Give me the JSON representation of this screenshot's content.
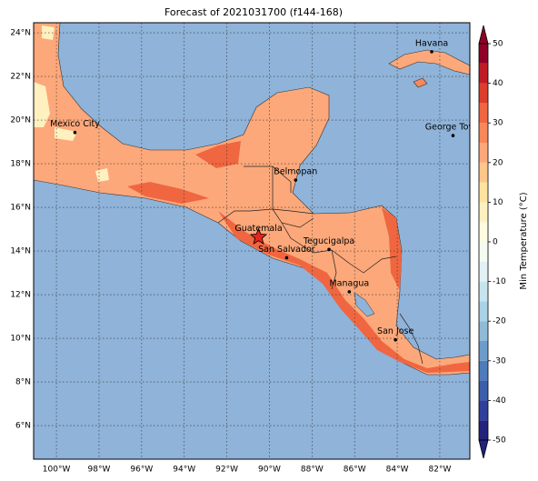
{
  "title": "Forecast of 2021031700 (f144-168)",
  "map": {
    "lonlim": [
      -101.07,
      -80.59
    ],
    "latlim": [
      4.46,
      24.46
    ],
    "xticks": [
      {
        "value": -100,
        "label": "100°W"
      },
      {
        "value": -98,
        "label": "98°W"
      },
      {
        "value": -96,
        "label": "96°W"
      },
      {
        "value": -94,
        "label": "94°W"
      },
      {
        "value": -92,
        "label": "92°W"
      },
      {
        "value": -90,
        "label": "90°W"
      },
      {
        "value": -88,
        "label": "88°W"
      },
      {
        "value": -86,
        "label": "86°W"
      },
      {
        "value": -84,
        "label": "84°W"
      },
      {
        "value": -82,
        "label": "82°W"
      }
    ],
    "yticks": [
      {
        "value": 6,
        "label": "6°N"
      },
      {
        "value": 8,
        "label": "8°N"
      },
      {
        "value": 10,
        "label": "10°N"
      },
      {
        "value": 12,
        "label": "12°N"
      },
      {
        "value": 14,
        "label": "14°N"
      },
      {
        "value": 16,
        "label": "16°N"
      },
      {
        "value": 18,
        "label": "18°N"
      },
      {
        "value": 20,
        "label": "20°N"
      },
      {
        "value": 22,
        "label": "22°N"
      },
      {
        "value": 24,
        "label": "24°N"
      }
    ],
    "grid": true,
    "cities": [
      {
        "name": "Mexico City",
        "lon": -99.13,
        "lat": 19.43,
        "marker": "dot"
      },
      {
        "name": "Havana",
        "lon": -82.38,
        "lat": 23.13,
        "marker": "dot"
      },
      {
        "name": "George Town",
        "lon": -81.38,
        "lat": 19.29,
        "marker": "dot"
      },
      {
        "name": "Belmopan",
        "lon": -88.77,
        "lat": 17.25,
        "marker": "dot"
      },
      {
        "name": "Guatemala",
        "lon": -90.51,
        "lat": 14.64,
        "marker": "star"
      },
      {
        "name": "Tegucigalpa",
        "lon": -87.2,
        "lat": 14.07,
        "marker": "dot"
      },
      {
        "name": "San Salvador",
        "lon": -89.19,
        "lat": 13.69,
        "marker": "dot"
      },
      {
        "name": "Managua",
        "lon": -86.25,
        "lat": 12.13,
        "marker": "dot"
      },
      {
        "name": "San Jose",
        "lon": -84.08,
        "lat": 9.93,
        "marker": "dot"
      }
    ]
  },
  "colorbar": {
    "label": "Min Temperature (°C)",
    "lim": [
      -50,
      50
    ],
    "ticks": [
      -50,
      -40,
      -30,
      -20,
      -10,
      0,
      10,
      20,
      30,
      40,
      50
    ],
    "extend": "both",
    "colors": [
      "#23237e",
      "#2e3f9c",
      "#3b5dab",
      "#4e7bb9",
      "#6c9cca",
      "#8fbad8",
      "#a9d2e5",
      "#c6e4ee",
      "#e2f2f4",
      "#f4fbf0",
      "#fffbe0",
      "#fff1bf",
      "#fee3a0",
      "#fdc68a",
      "#fca87a",
      "#f8875a",
      "#f06640",
      "#dc3e2b",
      "#bd1c26",
      "#900026"
    ]
  }
}
